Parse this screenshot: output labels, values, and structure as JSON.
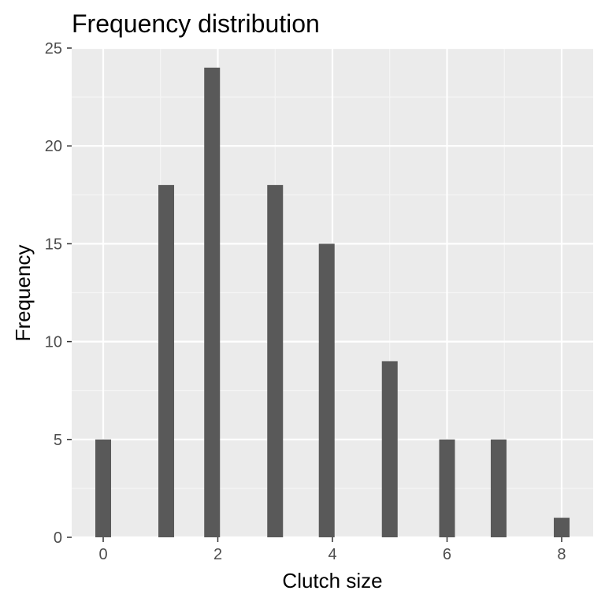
{
  "chart_data": {
    "type": "bar",
    "title": "Frequency distribution",
    "xlabel": "Clutch size",
    "ylabel": "Frequency",
    "categories": [
      0,
      1,
      2,
      3,
      4,
      5,
      6,
      7,
      8
    ],
    "x": [
      0,
      1.1,
      1.9,
      3.0,
      3.9,
      5.0,
      6.0,
      6.9,
      8.0
    ],
    "values": [
      5,
      18,
      24,
      18,
      15,
      9,
      5,
      5,
      1
    ],
    "xlim": [
      -0.55,
      8.55
    ],
    "ylim": [
      0,
      25
    ],
    "xticks": [
      0,
      2,
      4,
      6,
      8
    ],
    "yticks": [
      0,
      5,
      10,
      15,
      20,
      25
    ],
    "grid": true,
    "colors": {
      "bar": "#595959",
      "panel": "#ebebeb",
      "grid_major": "#ffffff",
      "grid_minor": "#f5f5f5",
      "tick_text": "#4d4d4d",
      "tick_mark": "#333333"
    }
  }
}
